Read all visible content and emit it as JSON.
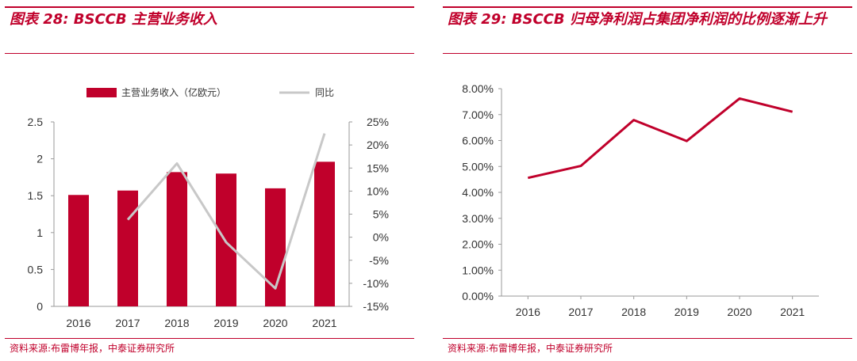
{
  "left": {
    "title": "图表 28:  BSCCB 主营业务收入",
    "source": "资料来源:布雷博年报，中泰证券研究所",
    "legend": {
      "bar": "主营业务收入（亿欧元）",
      "line": "同比"
    },
    "colors": {
      "bar": "#c0002b",
      "line": "#c8c8c8",
      "accent": "#c0002b"
    }
  },
  "right": {
    "title": "图表 29:  BSCCB 归母净利润占集团净利润的比例逐渐上升",
    "source": "资料来源:布雷博年报，中泰证券研究所",
    "colors": {
      "line": "#c0002b",
      "accent": "#c0002b"
    }
  },
  "chart_data": [
    {
      "type": "bar",
      "categories": [
        "2016",
        "2017",
        "2018",
        "2019",
        "2020",
        "2021"
      ],
      "series": [
        {
          "name": "主营业务收入（亿欧元）",
          "type": "bar",
          "axis": "left",
          "values": [
            1.51,
            1.57,
            1.82,
            1.8,
            1.6,
            1.96
          ]
        },
        {
          "name": "同比",
          "type": "line",
          "axis": "right",
          "values": [
            null,
            0.038,
            0.16,
            -0.011,
            -0.111,
            0.225
          ]
        }
      ],
      "ylim_left": [
        0,
        2.5
      ],
      "yticks_left": [
        "0",
        "0.5",
        "1",
        "1.5",
        "2",
        "2.5"
      ],
      "ylim_right": [
        -0.15,
        0.25
      ],
      "yticks_right": [
        "-15%",
        "-10%",
        "-5%",
        "0%",
        "5%",
        "10%",
        "15%",
        "20%",
        "25%"
      ],
      "legend_position": "top",
      "grid": false
    },
    {
      "type": "line",
      "categories": [
        "2016",
        "2017",
        "2018",
        "2019",
        "2020",
        "2021"
      ],
      "series": [
        {
          "values": [
            0.0456,
            0.0502,
            0.0679,
            0.0598,
            0.0762,
            0.0711
          ]
        }
      ],
      "ylim": [
        0,
        0.08
      ],
      "yticks": [
        "0.00%",
        "1.00%",
        "2.00%",
        "3.00%",
        "4.00%",
        "5.00%",
        "6.00%",
        "7.00%",
        "8.00%"
      ],
      "grid": false
    }
  ]
}
